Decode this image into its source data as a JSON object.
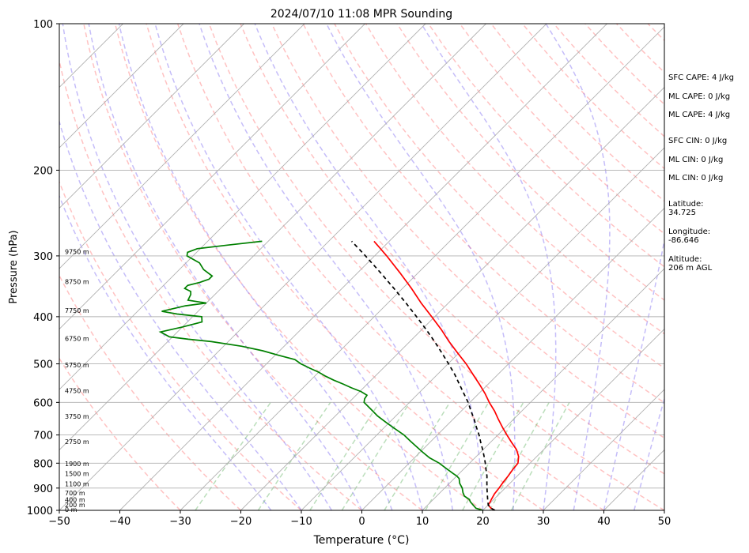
{
  "chart_data": {
    "type": "line",
    "title": "2024/07/10 11:08 MPR Sounding",
    "xlabel": "Temperature (°C)",
    "ylabel": "Pressure (hPa)",
    "xlim": [
      -50,
      50
    ],
    "ylim": [
      1000,
      100
    ],
    "y_scale": "log",
    "skew": "skew-T",
    "grid": true,
    "x_ticks": [
      "−50",
      "−40",
      "−30",
      "−20",
      "−10",
      "0",
      "10",
      "20",
      "30",
      "40",
      "50"
    ],
    "y_ticks": [
      {
        "p": 1000,
        "label": "1000"
      },
      {
        "p": 900,
        "label": "900"
      },
      {
        "p": 800,
        "label": "800"
      },
      {
        "p": 700,
        "label": "700"
      },
      {
        "p": 600,
        "label": "600"
      },
      {
        "p": 500,
        "label": "500"
      },
      {
        "p": 400,
        "label": "400"
      },
      {
        "p": 300,
        "label": "300"
      },
      {
        "p": 200,
        "label": "200"
      },
      {
        "p": 100,
        "label": "100"
      }
    ],
    "height_labels": [
      {
        "p": 1000,
        "label": "0 m"
      },
      {
        "p": 977,
        "label": "200 m"
      },
      {
        "p": 955,
        "label": "400 m"
      },
      {
        "p": 925,
        "label": "700 m"
      },
      {
        "p": 885,
        "label": "1100 m"
      },
      {
        "p": 843,
        "label": "1500 m"
      },
      {
        "p": 805,
        "label": "1900 m"
      },
      {
        "p": 725,
        "label": "2750 m"
      },
      {
        "p": 643,
        "label": "3750 m"
      },
      {
        "p": 570,
        "label": "4750 m"
      },
      {
        "p": 505,
        "label": "5750 m"
      },
      {
        "p": 445,
        "label": "6750 m"
      },
      {
        "p": 390,
        "label": "7750 m"
      },
      {
        "p": 340,
        "label": "8750 m"
      },
      {
        "p": 295,
        "label": "9750 m"
      }
    ],
    "series": [
      {
        "name": "Temperature",
        "color": "#ff0000",
        "p": [
          1000,
          990,
          975,
          960,
          950,
          925,
          900,
          875,
          850,
          825,
          800,
          775,
          750,
          725,
          700,
          675,
          650,
          625,
          600,
          575,
          550,
          525,
          500,
          475,
          450,
          425,
          400,
          375,
          350,
          325,
          300,
          290,
          280
        ],
        "t": [
          22.0,
          21.0,
          20.0,
          19.8,
          19.6,
          19.2,
          19.0,
          18.7,
          18.5,
          18.2,
          18.0,
          17.0,
          15.5,
          13.5,
          11.5,
          9.5,
          7.5,
          5.5,
          3.2,
          1.0,
          -1.5,
          -4.2,
          -7.0,
          -10.2,
          -13.5,
          -16.8,
          -20.5,
          -24.5,
          -28.5,
          -33.0,
          -38.0,
          -40.2,
          -42.5
        ]
      },
      {
        "name": "Dewpoint",
        "color": "#008000",
        "p": [
          1000,
          990,
          975,
          960,
          950,
          935,
          920,
          900,
          880,
          860,
          850,
          840,
          820,
          800,
          780,
          760,
          740,
          720,
          700,
          680,
          660,
          640,
          620,
          600,
          590,
          580,
          570,
          560,
          550,
          540,
          530,
          520,
          510,
          500,
          490,
          480,
          470,
          460,
          450,
          445,
          440,
          430,
          420,
          410,
          400,
          395,
          390,
          380,
          375,
          370,
          360,
          355,
          350,
          345,
          340,
          335,
          330,
          320,
          310,
          300,
          295,
          290,
          285,
          280
        ],
        "t": [
          20.0,
          18.5,
          17.5,
          16.5,
          16.0,
          14.6,
          13.8,
          12.9,
          11.7,
          10.8,
          10.0,
          9.0,
          7.0,
          5.0,
          2.5,
          0.5,
          -1.5,
          -3.5,
          -5.5,
          -8.0,
          -10.5,
          -13.0,
          -15.2,
          -17.5,
          -18.0,
          -18.2,
          -19.8,
          -22.0,
          -24.0,
          -26.2,
          -28.2,
          -30.0,
          -32.2,
          -34.3,
          -36.0,
          -39.5,
          -42.8,
          -47.0,
          -52.8,
          -57.0,
          -60.5,
          -62.8,
          -60.0,
          -57.6,
          -58.5,
          -63.0,
          -66.0,
          -63.0,
          -60.0,
          -63.5,
          -64.0,
          -64.5,
          -66.0,
          -66.0,
          -64.5,
          -63.5,
          -63.5,
          -66.0,
          -67.8,
          -71.0,
          -71.5,
          -70.5,
          -66.0,
          -61.0
        ]
      },
      {
        "name": "Parcel",
        "color": "#000000",
        "dashed": true,
        "p": [
          1000,
          990,
          975,
          950,
          925,
          900,
          875,
          850,
          825,
          800,
          775,
          750,
          725,
          700,
          675,
          650,
          625,
          600,
          575,
          550,
          525,
          500,
          475,
          450,
          425,
          400,
          375,
          350,
          325,
          300,
          290,
          280
        ],
        "t": [
          22.0,
          21.0,
          20.0,
          19.0,
          18.0,
          17.0,
          16.0,
          15.0,
          13.8,
          12.6,
          11.3,
          9.9,
          8.4,
          6.9,
          5.2,
          3.5,
          1.6,
          -0.3,
          -2.5,
          -4.8,
          -7.2,
          -9.9,
          -12.8,
          -15.9,
          -19.3,
          -23.0,
          -27.0,
          -31.4,
          -36.2,
          -41.5,
          -43.8,
          -46.2
        ]
      }
    ],
    "side_text": [
      "SFC CAPE: 4 J/kg",
      "ML CAPE: 0 J/kg",
      "ML CAPE: 4 J/kg",
      "SFC CIN: 0 J/kg",
      "ML CIN: 0 J/kg",
      "ML CIN: 0 J/kg",
      "Latitude:\n34.725",
      "Longitude:\n-86.646",
      "Altitude:\n206 m AGL"
    ]
  }
}
